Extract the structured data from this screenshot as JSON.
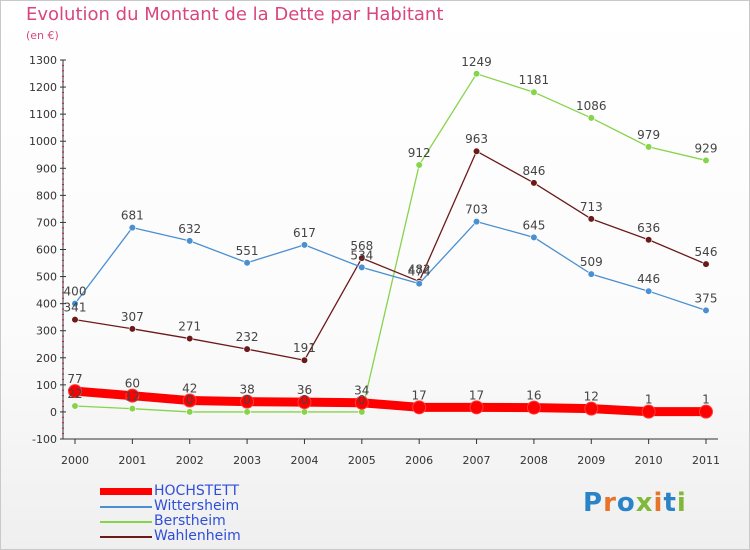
{
  "chart_data": {
    "type": "line",
    "title": "Evolution du Montant de la Dette par Habitant",
    "subtitle": "(en €)",
    "categories": [
      "2000",
      "2001",
      "2002",
      "2003",
      "2004",
      "2005",
      "2006",
      "2007",
      "2008",
      "2009",
      "2010",
      "2011"
    ],
    "ylim": [
      -100,
      1300
    ],
    "yticks": [
      -100,
      0,
      100,
      200,
      300,
      400,
      500,
      600,
      700,
      800,
      900,
      1000,
      1100,
      1200,
      1300
    ],
    "grid": false,
    "legend_position": "bottom-left",
    "series": [
      {
        "name": "HOCHSTETT",
        "color": "#ff0000",
        "values": [
          77,
          60,
          42,
          38,
          36,
          34,
          17,
          17,
          16,
          12,
          1,
          1
        ],
        "labels": [
          "77",
          "60",
          "42",
          "38",
          "36",
          "34",
          "17",
          "17",
          "16",
          "12",
          "1",
          "1"
        ]
      },
      {
        "name": "Wittersheim",
        "color": "#4a8fd0",
        "values": [
          400,
          681,
          632,
          551,
          617,
          534,
          474,
          703,
          645,
          509,
          446,
          375
        ],
        "labels": [
          "400",
          "681",
          "632",
          "551",
          "617",
          "534",
          "474",
          "703",
          "645",
          "509",
          "446",
          "375"
        ]
      },
      {
        "name": "Berstheim",
        "color": "#86d44a",
        "values": [
          22,
          12,
          0,
          0,
          0,
          0,
          912,
          1249,
          1181,
          1086,
          979,
          929
        ],
        "labels": [
          "22",
          "12",
          "0",
          "0",
          "0",
          "0",
          "912",
          "1249",
          "1181",
          "1086",
          "979",
          "929"
        ]
      },
      {
        "name": "Wahlenheim",
        "color": "#6b1a1a",
        "values": [
          341,
          307,
          271,
          232,
          191,
          568,
          482,
          963,
          846,
          713,
          636,
          546
        ],
        "labels": [
          "341",
          "307",
          "271",
          "232",
          "191",
          "568",
          "482",
          "963",
          "846",
          "713",
          "636",
          "546"
        ]
      }
    ]
  },
  "logo": {
    "text": "Proxiti",
    "letters": [
      "P",
      "r",
      "o",
      "x",
      "i",
      "t",
      "i"
    ],
    "colors": [
      "#2a83c7",
      "#e8742a",
      "#2a83c7",
      "#7fb83a",
      "#e8742a",
      "#2a83c7",
      "#7fb83a"
    ]
  }
}
